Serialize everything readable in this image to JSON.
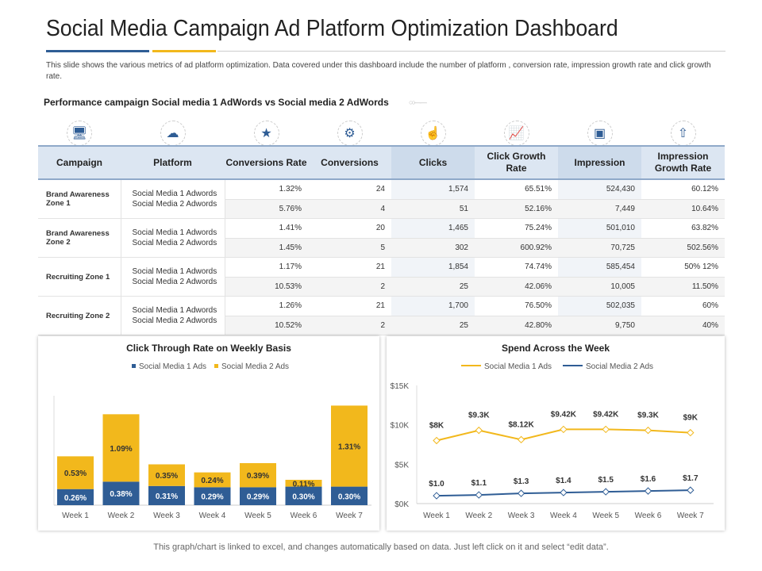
{
  "title": "Social Media Campaign Ad Platform Optimization Dashboard",
  "description": "This slide shows the various metrics of ad platform optimization. Data covered under this dashboard include the number of platform , conversion rate, impression growth rate and click growth rate.",
  "subtitle": "Performance campaign Social media 1 AdWords vs Social media 2 AdWords",
  "colors": {
    "primary": "#2f5d95",
    "accent": "#f2b81c",
    "header_bg": "#dce6f2"
  },
  "header_icons": [
    "monitor-megaphone-icon",
    "network-cloud-icon",
    "team-stars-icon",
    "robot-icon",
    "hand-click-icon",
    "growth-chart-icon",
    "monitor-presentation-icon",
    "bar-arrow-up-icon"
  ],
  "table": {
    "headers": [
      "Campaign",
      "Platform",
      "Conversions Rate",
      "Conversions",
      "Clicks",
      "Click Growth Rate",
      "Impression",
      "Impression Growth Rate"
    ],
    "rows": [
      {
        "campaign": "Brand Awareness Zone 1",
        "platforms": [
          "Social Media 1 Adwords",
          "Social Media 2 Adwords"
        ],
        "values": [
          [
            "1.32%",
            "24",
            "1,574",
            "65.51%",
            "524,430",
            "60.12%"
          ],
          [
            "5.76%",
            "4",
            "51",
            "52.16%",
            "7,449",
            "10.64%"
          ]
        ]
      },
      {
        "campaign": "Brand Awareness Zone 2",
        "platforms": [
          "Social Media 1 Adwords",
          "Social Media 2 Adwords"
        ],
        "values": [
          [
            "1.41%",
            "20",
            "1,465",
            "75.24%",
            "501,010",
            "63.82%"
          ],
          [
            "1.45%",
            "5",
            "302",
            "600.92%",
            "70,725",
            "502.56%"
          ]
        ]
      },
      {
        "campaign": "Recruiting Zone 1",
        "platforms": [
          "Social Media 1 Adwords",
          "Social Media 2 Adwords"
        ],
        "values": [
          [
            "1.17%",
            "21",
            "1,854",
            "74.74%",
            "585,454",
            "50% 12%"
          ],
          [
            "10.53%",
            "2",
            "25",
            "42.06%",
            "10,005",
            "11.50%"
          ]
        ]
      },
      {
        "campaign": "Recruiting Zone 2",
        "platforms": [
          "Social Media 1 Adwords",
          "Social Media 2 Adwords"
        ],
        "values": [
          [
            "1.26%",
            "21",
            "1,700",
            "76.50%",
            "502,035",
            "60%"
          ],
          [
            "10.52%",
            "2",
            "25",
            "42.80%",
            "9,750",
            "40%"
          ]
        ]
      }
    ]
  },
  "chart_data": [
    {
      "type": "bar",
      "stacked": true,
      "title": "Click Through Rate on Weekly Basis",
      "categories": [
        "Week 1",
        "Week 2",
        "Week 3",
        "Week 4",
        "Week 5",
        "Week 6",
        "Week 7"
      ],
      "series": [
        {
          "name": "Social Media 1 Ads",
          "color": "#2f5d95",
          "values": [
            0.26,
            0.38,
            0.31,
            0.29,
            0.29,
            0.3,
            0.3
          ],
          "labels": [
            "0.26%",
            "0.38%",
            "0.31%",
            "0.29%",
            "0.29%",
            "0.30%",
            "0.30%"
          ]
        },
        {
          "name": "Social Media 2 Ads",
          "color": "#f2b81c",
          "values": [
            0.53,
            1.09,
            0.35,
            0.24,
            0.39,
            0.11,
            1.31
          ],
          "labels": [
            "0.53%",
            "1.09%",
            "0.35%",
            "0.24%",
            "0.39%",
            "0.11%",
            "1.31%"
          ]
        }
      ],
      "legend": "top",
      "grid": false
    },
    {
      "type": "line",
      "title": "Spend Across the Week",
      "categories": [
        "Week 1",
        "Week 2",
        "Week 3",
        "Week 4",
        "Week 5",
        "Week 6",
        "Week 7"
      ],
      "yticks": [
        "$0K",
        "$5K",
        "$10K",
        "$15K"
      ],
      "ylim": [
        0,
        15
      ],
      "series": [
        {
          "name": "Social Media 1 Ads",
          "color": "#f2b81c",
          "values": [
            8,
            9.3,
            8.12,
            9.42,
            9.42,
            9.3,
            9
          ],
          "labels": [
            "$8K",
            "$9.3K",
            "$8.12K",
            "$9.42K",
            "$9.42K",
            "$9.3K",
            "$9K"
          ]
        },
        {
          "name": "Social Media 2 Ads",
          "color": "#2f5d95",
          "values": [
            1.0,
            1.1,
            1.3,
            1.4,
            1.5,
            1.6,
            1.7
          ],
          "labels": [
            "$1.0",
            "$1.1",
            "$1.3",
            "$1.4",
            "$1.5",
            "$1.6",
            "$1.7"
          ]
        }
      ],
      "legend": "top",
      "grid": false
    }
  ],
  "footer": "This graph/chart is linked to excel, and changes automatically based on data. Just left click on it and select “edit data”."
}
